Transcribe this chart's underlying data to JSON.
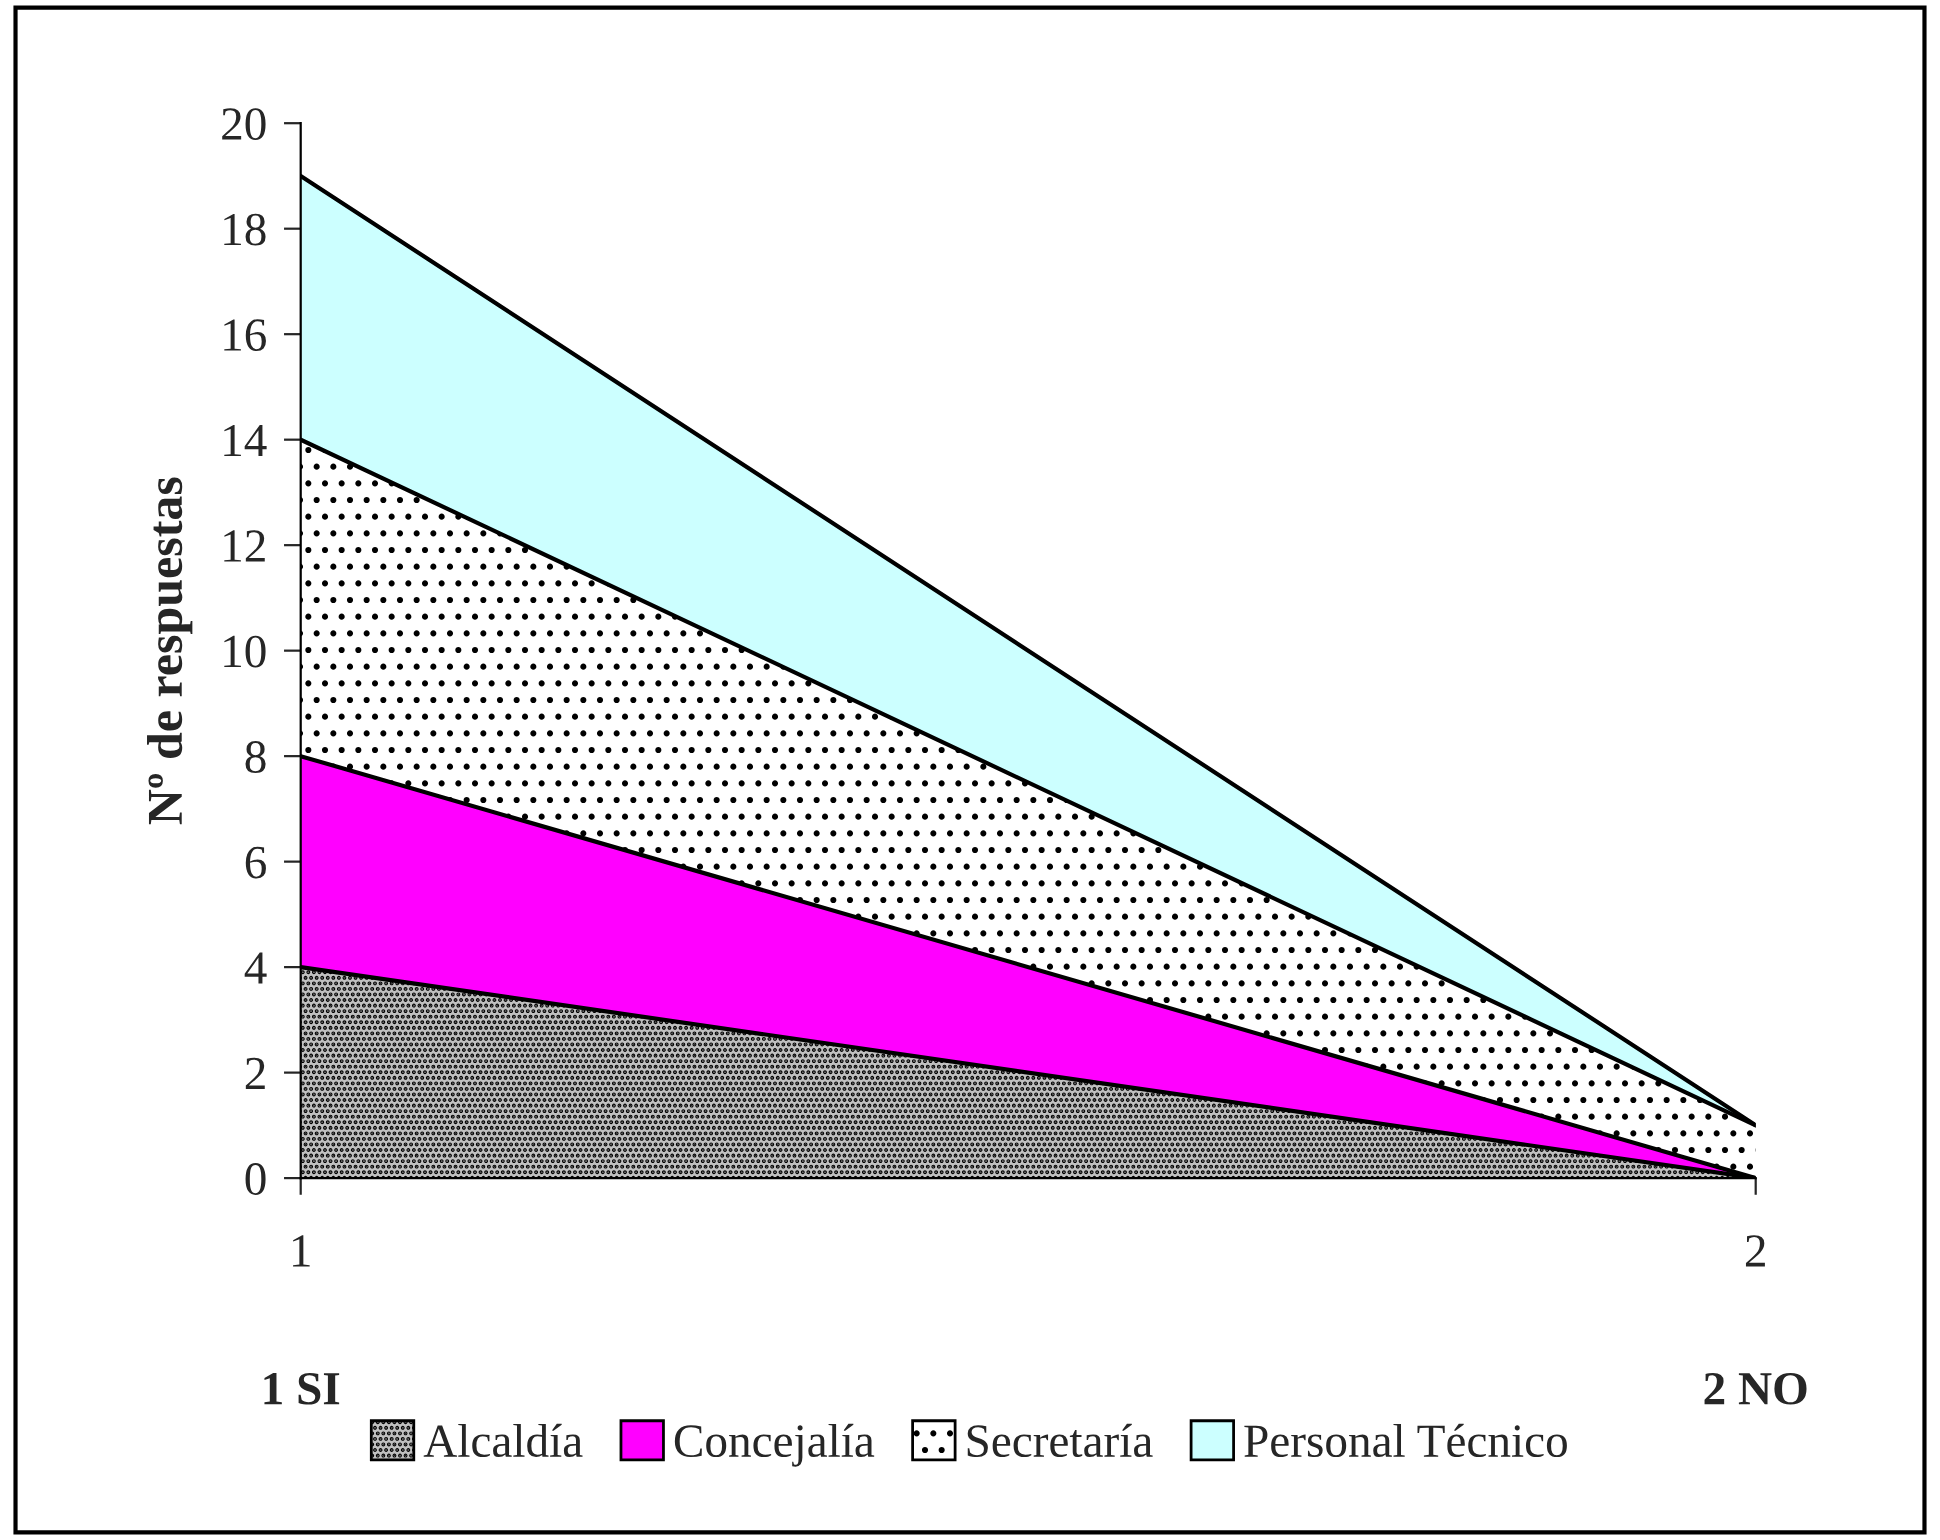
{
  "chart_data": {
    "type": "area",
    "stacked": true,
    "ylabel": "Nº de respuestas",
    "categories": [
      "1",
      "2"
    ],
    "series": [
      {
        "name": "Alcaldía",
        "color": "#c0c0c0",
        "values": [
          4,
          0
        ]
      },
      {
        "name": "Concejalía",
        "color": "#ff00ff",
        "values": [
          4,
          0
        ]
      },
      {
        "name": "Secretaría",
        "color": "#ffffff",
        "values": [
          6,
          1
        ]
      },
      {
        "name": "Personal Técnico",
        "color": "#ccffff",
        "values": [
          5,
          0
        ]
      }
    ],
    "ylim": [
      0,
      20
    ],
    "yticks": [
      0,
      2,
      4,
      6,
      8,
      10,
      12,
      14,
      16,
      18,
      20
    ],
    "annotations": [
      "1 SI",
      "2 NO"
    ],
    "grid": false,
    "legend": "bottom"
  }
}
